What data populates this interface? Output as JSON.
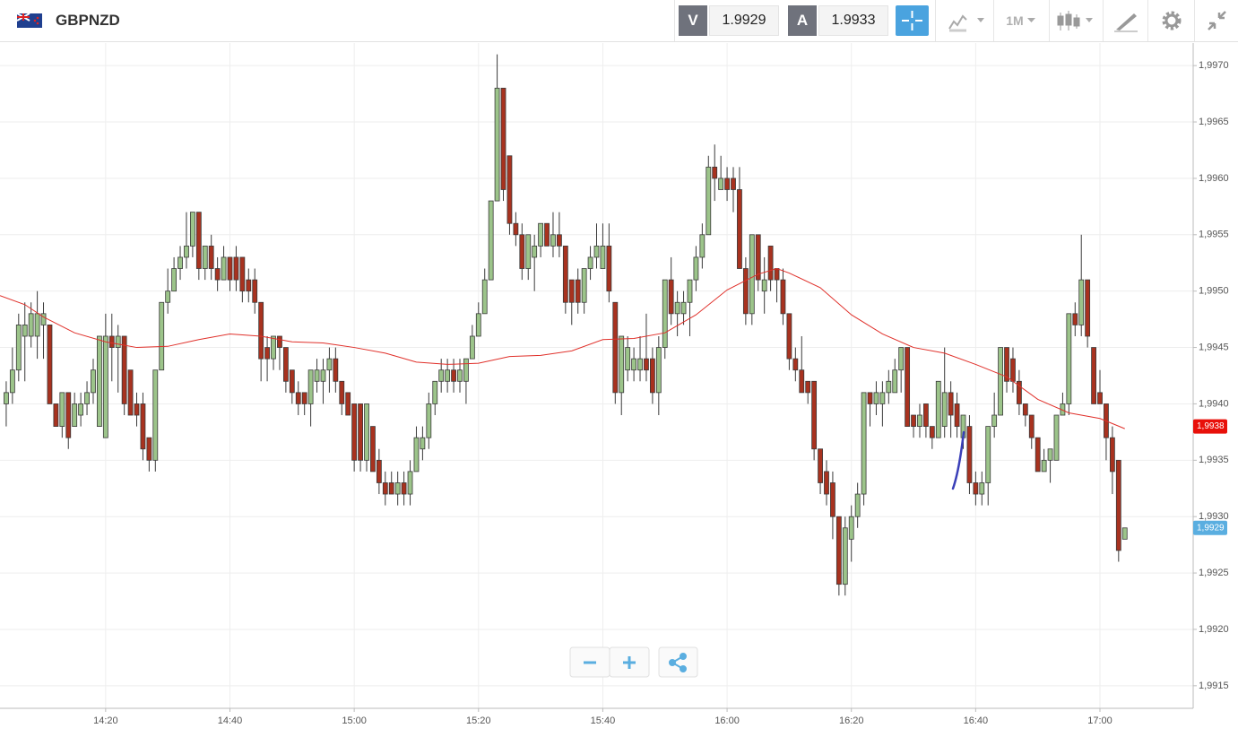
{
  "toolbar": {
    "symbol": "GBPNZD",
    "bid_label": "V",
    "bid": "1.9929",
    "ask_label": "A",
    "ask": "1.9933",
    "timeframe": "1M"
  },
  "chart_data": {
    "type": "candlestick",
    "up_color": "#9cc48a",
    "down_color": "#a8321f",
    "grid": true,
    "x": [
      "14:04",
      "14:05",
      "14:06",
      "14:07",
      "14:08",
      "14:09",
      "14:10",
      "14:11",
      "14:12",
      "14:13",
      "14:14",
      "14:15",
      "14:16",
      "14:17",
      "14:18",
      "14:19",
      "14:20",
      "14:21",
      "14:22",
      "14:23",
      "14:24",
      "14:25",
      "14:26",
      "14:27",
      "14:28",
      "14:29",
      "14:30",
      "14:31",
      "14:32",
      "14:33",
      "14:34",
      "14:35",
      "14:36",
      "14:37",
      "14:38",
      "14:39",
      "14:40",
      "14:41",
      "14:42",
      "14:43",
      "14:44",
      "14:45",
      "14:46",
      "14:47",
      "14:48",
      "14:49",
      "14:50",
      "14:51",
      "14:52",
      "14:53",
      "14:54",
      "14:55",
      "14:56",
      "14:57",
      "14:58",
      "14:59",
      "15:00",
      "15:01",
      "15:02",
      "15:03",
      "15:04",
      "15:05",
      "15:06",
      "15:07",
      "15:08",
      "15:09",
      "15:10",
      "15:11",
      "15:12",
      "15:13",
      "15:14",
      "15:15",
      "15:16",
      "15:17",
      "15:18",
      "15:19",
      "15:20",
      "15:21",
      "15:22",
      "15:23",
      "15:24",
      "15:25",
      "15:26",
      "15:27",
      "15:28",
      "15:29",
      "15:30",
      "15:31",
      "15:32",
      "15:33",
      "15:34",
      "15:35",
      "15:36",
      "15:37",
      "15:38",
      "15:39",
      "15:40",
      "15:41",
      "15:42",
      "15:43",
      "15:44",
      "15:45",
      "15:46",
      "15:47",
      "15:48",
      "15:49",
      "15:50",
      "15:51",
      "15:52",
      "15:53",
      "15:54",
      "15:55",
      "15:56",
      "15:57",
      "15:58",
      "15:59",
      "16:00",
      "16:01",
      "16:02",
      "16:03",
      "16:04",
      "16:05",
      "16:06",
      "16:07",
      "16:08",
      "16:09",
      "16:10",
      "16:11",
      "16:12",
      "16:13",
      "16:14",
      "16:15",
      "16:16",
      "16:17",
      "16:18",
      "16:19",
      "16:20",
      "16:21",
      "16:22",
      "16:23",
      "16:24",
      "16:25",
      "16:26",
      "16:27",
      "16:28",
      "16:29",
      "16:30",
      "16:31",
      "16:32",
      "16:33",
      "16:34",
      "16:35",
      "16:36",
      "16:37",
      "16:38",
      "16:39",
      "16:40",
      "16:41",
      "16:42",
      "16:43",
      "16:44",
      "16:45",
      "16:46",
      "16:47",
      "16:48",
      "16:49",
      "16:50",
      "16:51",
      "16:52",
      "16:53",
      "16:54",
      "16:55",
      "16:56",
      "16:57",
      "16:58",
      "16:59",
      "17:00",
      "17:01",
      "17:02",
      "17:03",
      "17:04"
    ],
    "open": [
      1.994,
      1.9941,
      1.9943,
      1.9946,
      1.9946,
      1.9946,
      1.9947,
      1.9947,
      1.994,
      1.9938,
      1.9941,
      1.9938,
      1.9939,
      1.994,
      1.9941,
      1.9938,
      1.9937,
      1.9946,
      1.9945,
      1.9946,
      1.9943,
      1.994,
      1.994,
      1.9937,
      1.9935,
      1.9943,
      1.9949,
      1.995,
      1.9952,
      1.9953,
      1.9954,
      1.9957,
      1.9952,
      1.9954,
      1.9952,
      1.9951,
      1.9953,
      1.9953,
      1.9953,
      1.9951,
      1.9951,
      1.9949,
      1.9945,
      1.9944,
      1.9946,
      1.9945,
      1.9943,
      1.9941,
      1.9941,
      1.994,
      1.9942,
      1.9942,
      1.9943,
      1.9944,
      1.9942,
      1.9941,
      1.994,
      1.994,
      1.9935,
      1.9938,
      1.9935,
      1.9933,
      1.9933,
      1.9932,
      1.9933,
      1.9932,
      1.9934,
      1.9936,
      1.9937,
      1.994,
      1.9942,
      1.9942,
      1.9943,
      1.9942,
      1.9942,
      1.9944,
      1.9946,
      1.9948,
      1.9951,
      1.9958,
      1.9968,
      1.9962,
      1.9956,
      1.9955,
      1.9952,
      1.9953,
      1.9954,
      1.9956,
      1.9954,
      1.9955,
      1.9954,
      1.9951,
      1.9951,
      1.9949,
      1.9952,
      1.9953,
      1.9952,
      1.9954,
      1.9949,
      1.9941,
      1.9943,
      1.9943,
      1.9943,
      1.9944,
      1.9944,
      1.9941,
      1.9945,
      1.9951,
      1.9948,
      1.9948,
      1.9949,
      1.9951,
      1.9953,
      1.9955,
      1.9961,
      1.9959,
      1.996,
      1.996,
      1.9959,
      1.9952,
      1.9948,
      1.9955,
      1.995,
      1.9954,
      1.9952,
      1.9951,
      1.9948,
      1.9944,
      1.9943,
      1.9942,
      1.9942,
      1.9936,
      1.9934,
      1.9933,
      1.993,
      1.9924,
      1.9928,
      1.993,
      1.9932,
      1.9941,
      1.994,
      1.994,
      1.9941,
      1.9941,
      1.9943,
      1.9945,
      1.9939,
      1.9938,
      1.994,
      1.9938,
      1.9937,
      1.9938,
      1.9941,
      1.994,
      1.9937,
      1.9938,
      1.9933,
      1.9932,
      1.9933,
      1.9938,
      1.9939,
      1.9945,
      1.9944,
      1.9942,
      1.994,
      1.9939,
      1.9937,
      1.9934,
      1.9935,
      1.9935,
      1.9939,
      1.994,
      1.9948,
      1.9947,
      1.9951,
      1.9945,
      1.9941,
      1.994,
      1.9937,
      1.9935,
      1.9928
    ],
    "high": [
      1.9942,
      1.9945,
      1.9948,
      1.9949,
      1.9949,
      1.995,
      1.9949,
      1.9947,
      1.994,
      1.9941,
      1.9941,
      1.9941,
      1.9941,
      1.9942,
      1.9944,
      1.9946,
      1.9948,
      1.9948,
      1.9947,
      1.9946,
      1.9943,
      1.9941,
      1.9941,
      1.9937,
      1.9943,
      1.9949,
      1.9952,
      1.9953,
      1.9954,
      1.9957,
      1.9957,
      1.9957,
      1.9954,
      1.9955,
      1.9953,
      1.9954,
      1.9953,
      1.9954,
      1.9953,
      1.9952,
      1.9952,
      1.9949,
      1.9946,
      1.9946,
      1.9946,
      1.9945,
      1.9943,
      1.9942,
      1.9941,
      1.9943,
      1.9944,
      1.9944,
      1.9945,
      1.9945,
      1.9942,
      1.9941,
      1.994,
      1.994,
      1.994,
      1.9938,
      1.9936,
      1.9934,
      1.9934,
      1.9934,
      1.9934,
      1.9935,
      1.9938,
      1.9938,
      1.9941,
      1.9942,
      1.9944,
      1.9944,
      1.9944,
      1.9944,
      1.9944,
      1.9947,
      1.9949,
      1.9952,
      1.9958,
      1.9971,
      1.9968,
      1.9962,
      1.9957,
      1.9956,
      1.9955,
      1.9955,
      1.9956,
      1.9956,
      1.9957,
      1.9957,
      1.9954,
      1.9951,
      1.9952,
      1.9952,
      1.9954,
      1.9956,
      1.9956,
      1.9956,
      1.9949,
      1.9946,
      1.9946,
      1.9945,
      1.9946,
      1.9948,
      1.9945,
      1.9946,
      1.9951,
      1.9953,
      1.995,
      1.995,
      1.9951,
      1.9954,
      1.9956,
      1.9962,
      1.9963,
      1.9962,
      1.9961,
      1.9961,
      1.9961,
      1.9953,
      1.9955,
      1.9955,
      1.9953,
      1.9954,
      1.9952,
      1.9952,
      1.9948,
      1.9945,
      1.9946,
      1.9942,
      1.9942,
      1.9936,
      1.9935,
      1.9934,
      1.993,
      1.993,
      1.9931,
      1.9933,
      1.9941,
      1.9941,
      1.9942,
      1.9942,
      1.9943,
      1.9944,
      1.9945,
      1.9945,
      1.9939,
      1.994,
      1.994,
      1.9938,
      1.9942,
      1.9945,
      1.9942,
      1.9941,
      1.9939,
      1.9939,
      1.9934,
      1.9934,
      1.9938,
      1.9941,
      1.9945,
      1.9945,
      1.9945,
      1.9943,
      1.994,
      1.9939,
      1.9937,
      1.9936,
      1.9936,
      1.9939,
      1.9941,
      1.9948,
      1.9949,
      1.9955,
      1.9951,
      1.9945,
      1.9943,
      1.994,
      1.9938,
      1.9935,
      1.9929
    ],
    "low": [
      1.9938,
      1.994,
      1.9942,
      1.9942,
      1.9945,
      1.9944,
      1.9944,
      1.994,
      1.9938,
      1.9937,
      1.9936,
      1.9938,
      1.9938,
      1.9939,
      1.994,
      1.9938,
      1.9937,
      1.9942,
      1.9941,
      1.9939,
      1.9939,
      1.9938,
      1.9935,
      1.9934,
      1.9934,
      1.9943,
      1.9948,
      1.995,
      1.9951,
      1.9952,
      1.9953,
      1.9951,
      1.9951,
      1.9951,
      1.995,
      1.9951,
      1.995,
      1.995,
      1.9949,
      1.9949,
      1.9948,
      1.9942,
      1.9942,
      1.9943,
      1.9943,
      1.9941,
      1.994,
      1.9939,
      1.9939,
      1.9938,
      1.9941,
      1.994,
      1.9941,
      1.9941,
      1.9939,
      1.9939,
      1.9934,
      1.9934,
      1.9934,
      1.9934,
      1.9932,
      1.9931,
      1.9932,
      1.9931,
      1.9931,
      1.9931,
      1.9934,
      1.9935,
      1.9936,
      1.9939,
      1.9941,
      1.9941,
      1.9941,
      1.9941,
      1.994,
      1.9944,
      1.9946,
      1.9948,
      1.9951,
      1.9958,
      1.9958,
      1.9955,
      1.9954,
      1.9951,
      1.9951,
      1.995,
      1.9953,
      1.9954,
      1.9953,
      1.9953,
      1.9948,
      1.9947,
      1.9948,
      1.9948,
      1.9951,
      1.9952,
      1.9952,
      1.9949,
      1.994,
      1.9939,
      1.9942,
      1.9942,
      1.9942,
      1.9942,
      1.994,
      1.9939,
      1.9944,
      1.9947,
      1.9946,
      1.9947,
      1.9946,
      1.995,
      1.9952,
      1.9955,
      1.9958,
      1.9959,
      1.9958,
      1.9957,
      1.9952,
      1.9947,
      1.9947,
      1.995,
      1.9948,
      1.995,
      1.9949,
      1.9947,
      1.9943,
      1.9942,
      1.9941,
      1.994,
      1.9935,
      1.9932,
      1.9931,
      1.9928,
      1.9923,
      1.9923,
      1.9926,
      1.9929,
      1.9931,
      1.9938,
      1.9939,
      1.9938,
      1.994,
      1.9941,
      1.9941,
      1.9938,
      1.9937,
      1.9937,
      1.9937,
      1.9936,
      1.9937,
      1.9937,
      1.9937,
      1.9937,
      1.9936,
      1.9932,
      1.9931,
      1.9931,
      1.9931,
      1.9937,
      1.9939,
      1.9941,
      1.9941,
      1.9939,
      1.9938,
      1.9936,
      1.9934,
      1.9934,
      1.9933,
      1.9935,
      1.9939,
      1.9939,
      1.9946,
      1.9946,
      1.9945,
      1.994,
      1.994,
      1.9935,
      1.9932,
      1.9926,
      1.9928
    ],
    "close": [
      1.9941,
      1.9943,
      1.9947,
      1.9947,
      1.9948,
      1.9948,
      1.9948,
      1.994,
      1.9938,
      1.9941,
      1.9937,
      1.994,
      1.994,
      1.9941,
      1.9943,
      1.9946,
      1.9946,
      1.9945,
      1.9946,
      1.994,
      1.9939,
      1.9939,
      1.9936,
      1.9935,
      1.9943,
      1.9949,
      1.995,
      1.9952,
      1.9953,
      1.9954,
      1.9957,
      1.9952,
      1.9954,
      1.9952,
      1.9951,
      1.9953,
      1.9951,
      1.9951,
      1.995,
      1.995,
      1.9949,
      1.9944,
      1.9944,
      1.9946,
      1.9945,
      1.9942,
      1.9941,
      1.994,
      1.994,
      1.9943,
      1.9943,
      1.9943,
      1.9944,
      1.9942,
      1.994,
      1.9939,
      1.9935,
      1.9935,
      1.994,
      1.9934,
      1.9933,
      1.9932,
      1.9932,
      1.9933,
      1.9932,
      1.9934,
      1.9937,
      1.9937,
      1.994,
      1.9942,
      1.9943,
      1.9943,
      1.9942,
      1.9943,
      1.9944,
      1.9946,
      1.9948,
      1.9951,
      1.9958,
      1.9968,
      1.9959,
      1.9956,
      1.9955,
      1.9952,
      1.9955,
      1.9954,
      1.9956,
      1.9954,
      1.9955,
      1.9954,
      1.9949,
      1.9949,
      1.9949,
      1.9952,
      1.9953,
      1.9954,
      1.9954,
      1.995,
      1.9941,
      1.9946,
      1.9945,
      1.9944,
      1.9944,
      1.9943,
      1.9941,
      1.9945,
      1.9951,
      1.9948,
      1.9949,
      1.9949,
      1.9951,
      1.9953,
      1.9955,
      1.9961,
      1.996,
      1.996,
      1.9959,
      1.9959,
      1.9952,
      1.9948,
      1.9955,
      1.9951,
      1.9951,
      1.9951,
      1.9951,
      1.9948,
      1.9944,
      1.9943,
      1.9941,
      1.9941,
      1.9936,
      1.9933,
      1.9932,
      1.993,
      1.9924,
      1.9929,
      1.993,
      1.9932,
      1.9941,
      1.994,
      1.9941,
      1.9941,
      1.9942,
      1.9943,
      1.9945,
      1.9938,
      1.9938,
      1.9939,
      1.9938,
      1.9937,
      1.9942,
      1.9941,
      1.9939,
      1.9938,
      1.9939,
      1.9933,
      1.9932,
      1.9933,
      1.9938,
      1.9939,
      1.9945,
      1.9942,
      1.9942,
      1.994,
      1.9939,
      1.9937,
      1.9934,
      1.9935,
      1.9936,
      1.9939,
      1.994,
      1.9948,
      1.9947,
      1.9951,
      1.9946,
      1.994,
      1.994,
      1.9937,
      1.9934,
      1.9927,
      1.9929
    ],
    "overlay": {
      "type": "line",
      "color": "#e0302a",
      "x": [
        "14:03",
        "14:07",
        "14:10",
        "14:15",
        "14:20",
        "14:25",
        "14:30",
        "14:35",
        "14:40",
        "14:45",
        "14:50",
        "14:55",
        "15:00",
        "15:05",
        "15:10",
        "15:15",
        "15:20",
        "15:25",
        "15:30",
        "15:35",
        "15:40",
        "15:45",
        "15:50",
        "15:55",
        "16:00",
        "16:05",
        "16:08",
        "16:10",
        "16:15",
        "16:20",
        "16:25",
        "16:30",
        "16:35",
        "16:40",
        "16:45",
        "16:50",
        "16:55",
        "17:00",
        "17:04"
      ],
      "values": [
        1.99496,
        1.99488,
        1.99477,
        1.99463,
        1.99455,
        1.9945,
        1.99451,
        1.99457,
        1.99462,
        1.9946,
        1.99455,
        1.99454,
        1.9945,
        1.99445,
        1.99437,
        1.99435,
        1.99436,
        1.99442,
        1.99443,
        1.99447,
        1.99457,
        1.99458,
        1.99463,
        1.99479,
        1.99501,
        1.99515,
        1.9952,
        1.99516,
        1.99503,
        1.99479,
        1.99462,
        1.9945,
        1.99445,
        1.99435,
        1.99424,
        1.99404,
        1.99392,
        1.99387,
        1.99378
      ]
    },
    "price_markers": [
      {
        "value": 1.9938,
        "label": "1,9938",
        "color": "#e8100a"
      },
      {
        "value": 1.9929,
        "label": "1,9929",
        "color": "#5aaee0"
      }
    ],
    "xlim": [
      "14:03",
      "17:15"
    ],
    "xticks": [
      "14:20",
      "14:40",
      "15:00",
      "15:20",
      "15:40",
      "16:00",
      "16:20",
      "16:40",
      "17:00"
    ],
    "ylim": [
      1.9913,
      1.9972
    ],
    "yticks": [
      {
        "value": 1.9915,
        "label": "1,9915"
      },
      {
        "value": 1.992,
        "label": "1,9920"
      },
      {
        "value": 1.9925,
        "label": "1,9925"
      },
      {
        "value": 1.993,
        "label": "1,9930"
      },
      {
        "value": 1.9935,
        "label": "1,9935"
      },
      {
        "value": 1.994,
        "label": "1,9940"
      },
      {
        "value": 1.9945,
        "label": "1,9945"
      },
      {
        "value": 1.995,
        "label": "1,9950"
      },
      {
        "value": 1.9955,
        "label": "1,9955"
      },
      {
        "value": 1.996,
        "label": "1,9960"
      },
      {
        "value": 1.9965,
        "label": "1,9965"
      },
      {
        "value": 1.997,
        "label": "1,9970"
      }
    ]
  }
}
